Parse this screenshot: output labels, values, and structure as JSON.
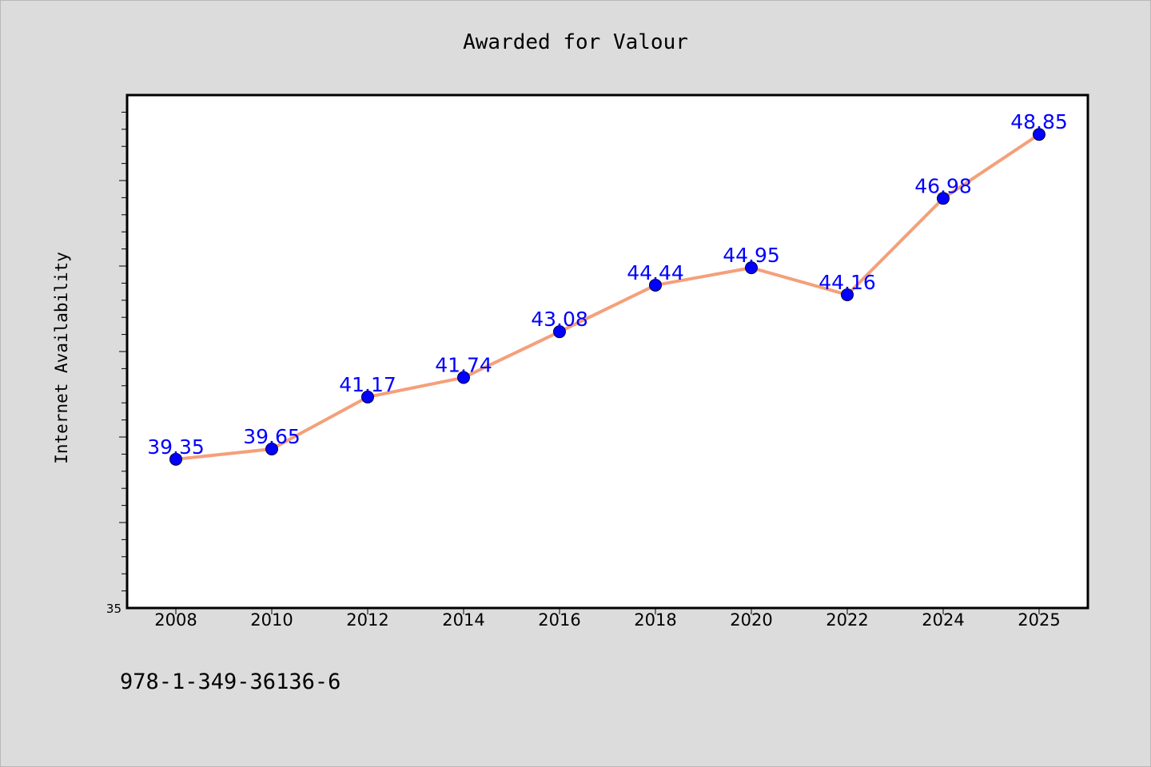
{
  "footer_code": "978-1-349-36136-6",
  "colors": {
    "background": "#dcdcdc",
    "plot_background": "#ffffff",
    "line": "#f4a07a",
    "marker": "#0000ff",
    "data_label": "#0000ff"
  },
  "chart_data": {
    "type": "line",
    "title": "Awarded for Valour",
    "xlabel": "",
    "ylabel": "Internet Availability",
    "categories": [
      "2008",
      "2010",
      "2012",
      "2014",
      "2016",
      "2018",
      "2020",
      "2022",
      "2024",
      "2025"
    ],
    "series": [
      {
        "values": [
          39.35,
          39.65,
          41.17,
          41.74,
          43.08,
          44.44,
          44.95,
          44.16,
          46.98,
          48.85
        ]
      }
    ],
    "data_labels": [
      "39.35",
      "39.65",
      "41.17",
      "41.74",
      "43.08",
      "44.44",
      "44.95",
      "44.16",
      "46.98",
      "48.85"
    ],
    "y_tick_labels": [
      "35"
    ],
    "ylim": [
      35,
      50
    ],
    "grid": false,
    "legend": "none"
  }
}
